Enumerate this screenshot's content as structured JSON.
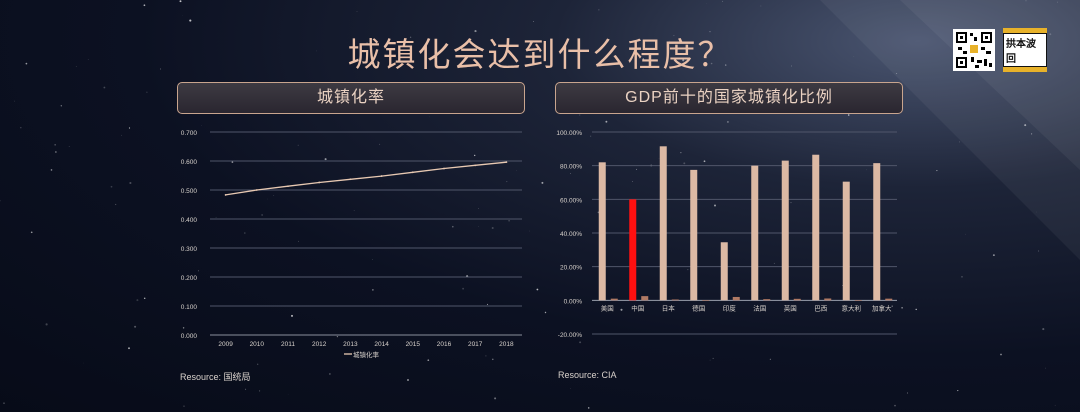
{
  "page": {
    "title": "城镇化会达到什么程度？",
    "logo_text": "拱本波回"
  },
  "panels": {
    "left_title": "城镇化率",
    "right_title": "GDP前十的国家城镇化比例"
  },
  "sources": {
    "left": "Resource: 国统局",
    "right": "Resource: CIA"
  },
  "colors": {
    "line": "#e8c9b2",
    "bar_main": "#dcb9a4",
    "bar_secondary": "#b07a64",
    "bar_highlight": "#ff1010"
  },
  "chart_data": [
    {
      "type": "line",
      "x": [
        "2009",
        "2010",
        "2011",
        "2012",
        "2013",
        "2014",
        "2015",
        "2016",
        "2017",
        "2018"
      ],
      "series": [
        {
          "name": "城镇化率",
          "values": [
            0.483,
            0.5,
            0.513,
            0.526,
            0.537,
            0.548,
            0.561,
            0.574,
            0.585,
            0.596
          ]
        }
      ],
      "ylim": [
        0,
        0.7
      ],
      "yticks": [
        "0.000",
        "0.100",
        "0.200",
        "0.300",
        "0.400",
        "0.500",
        "0.600",
        "0.700"
      ],
      "legend": "bottom",
      "legend_label": "城镇化率",
      "grid": true
    },
    {
      "type": "bar",
      "categories": [
        "美国",
        "中国",
        "日本",
        "德国",
        "印度",
        "法国",
        "英国",
        "巴西",
        "意大利",
        "加拿大"
      ],
      "series": [
        {
          "values": [
            0.82,
            0.6,
            0.915,
            0.775,
            0.345,
            0.8,
            0.83,
            0.865,
            0.705,
            0.815
          ]
        },
        {
          "values": [
            0.01,
            0.025,
            0.005,
            0.002,
            0.02,
            0.007,
            0.009,
            0.011,
            0.002,
            0.01
          ]
        }
      ],
      "highlight_index": 1,
      "ylim": [
        -0.2,
        1.0
      ],
      "yticks": [
        "-20.00%",
        "0.00%",
        "20.00%",
        "40.00%",
        "60.00%",
        "80.00%",
        "100.00%"
      ],
      "grid": true
    }
  ]
}
